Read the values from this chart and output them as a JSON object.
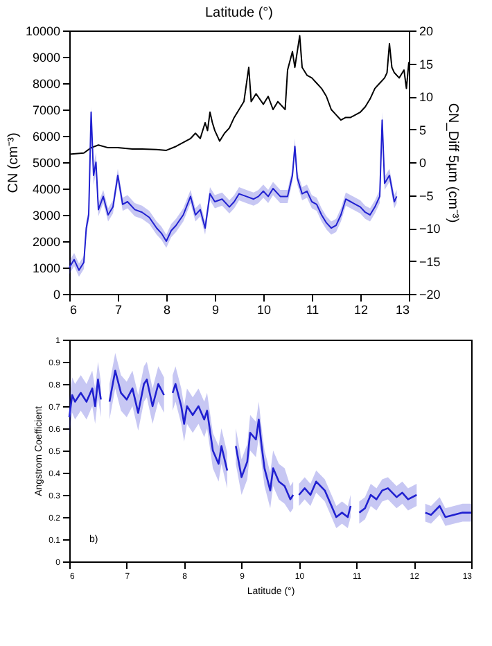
{
  "chart_data": [
    {
      "type": "line",
      "title": "Latitude (°)",
      "ylabel": "CN (cm⁻³)",
      "y2label": "CN_Diff 5µm (cm⁻³)",
      "xlim": [
        6,
        13
      ],
      "xticks": [
        6,
        7,
        8,
        9,
        10,
        11,
        12,
        13
      ],
      "ylim": [
        0,
        10000
      ],
      "yticks": [
        0,
        1000,
        2000,
        3000,
        4000,
        5000,
        6000,
        7000,
        8000,
        9000,
        10000
      ],
      "y2lim": [
        -20,
        20
      ],
      "y2ticks": [
        -20,
        -15,
        -10,
        -5,
        0,
        5,
        10,
        15,
        20
      ],
      "grid": false,
      "series": [
        {
          "color": "#000000",
          "x": [
            6.0,
            6.3,
            6.45,
            6.6,
            6.8,
            7.0,
            7.3,
            7.5,
            7.8,
            8.0,
            8.2,
            8.4,
            8.5,
            8.6,
            8.7,
            8.8,
            8.85,
            8.9,
            8.95,
            9.0,
            9.1,
            9.2,
            9.3,
            9.4,
            9.5,
            9.6,
            9.7,
            9.75,
            9.85,
            10.0,
            10.1,
            10.2,
            10.3,
            10.45,
            10.5,
            10.6,
            10.65,
            10.7,
            10.75,
            10.8,
            10.9,
            11.0,
            11.1,
            11.2,
            11.3,
            11.4,
            11.5,
            11.6,
            11.7,
            11.8,
            11.9,
            12.0,
            12.1,
            12.2,
            12.3,
            12.4,
            12.5,
            12.55,
            12.6,
            12.65,
            12.7,
            12.8,
            12.9,
            12.95,
            13.0
          ],
          "values": [
            5300,
            5350,
            5550,
            5650,
            5550,
            5550,
            5500,
            5500,
            5480,
            5450,
            5600,
            5800,
            5900,
            6100,
            5900,
            6500,
            6200,
            6900,
            6500,
            6200,
            5800,
            6100,
            6300,
            6700,
            7000,
            7300,
            8600,
            7300,
            7600,
            7200,
            7500,
            7000,
            7300,
            7000,
            8500,
            9200,
            8600,
            9200,
            9800,
            8600,
            8300,
            8200,
            8000,
            7800,
            7500,
            7000,
            6800,
            6600,
            6700,
            6700,
            6800,
            6900,
            7100,
            7400,
            7800,
            8000,
            8200,
            8400,
            9500,
            8600,
            8400,
            8200,
            8500,
            7800,
            8800
          ]
        },
        {
          "color": "#2020d0",
          "axis": "y2",
          "x": [
            6.0,
            6.1,
            6.2,
            6.3,
            6.35,
            6.4,
            6.45,
            6.5,
            6.55,
            6.6,
            6.7,
            6.8,
            6.9,
            7.0,
            7.1,
            7.2,
            7.35,
            7.5,
            7.65,
            7.8,
            7.9,
            8.0,
            8.1,
            8.2,
            8.35,
            8.5,
            8.6,
            8.7,
            8.8,
            8.9,
            9.0,
            9.15,
            9.3,
            9.4,
            9.5,
            9.65,
            9.8,
            9.9,
            10.0,
            10.1,
            10.2,
            10.35,
            10.5,
            10.6,
            10.65,
            10.7,
            10.8,
            10.9,
            11.0,
            11.1,
            11.2,
            11.3,
            11.4,
            11.5,
            11.6,
            11.7,
            11.8,
            11.9,
            12.0,
            12.1,
            12.2,
            12.3,
            12.4,
            12.45,
            12.5,
            12.6,
            12.7,
            12.75
          ],
          "values": [
            -16,
            -14.8,
            -16.4,
            -15.2,
            -10,
            -8,
            7.6,
            -2,
            0,
            -7.2,
            -5.2,
            -8,
            -6.8,
            -2,
            -6.4,
            -6,
            -7.2,
            -7.6,
            -8.4,
            -10,
            -10.8,
            -12,
            -10.4,
            -9.6,
            -8,
            -5.2,
            -8,
            -7.2,
            -10,
            -4.8,
            -6,
            -5.6,
            -6.8,
            -6,
            -4.8,
            -5.2,
            -5.6,
            -5.2,
            -4.4,
            -5.2,
            -4,
            -5.2,
            -5.2,
            -2,
            2.4,
            -2.4,
            -4.8,
            -4.4,
            -6,
            -6.4,
            -8,
            -9.2,
            -10,
            -9.6,
            -8,
            -5.6,
            -6,
            -6.4,
            -6.8,
            -7.6,
            -8,
            -6.8,
            -5.2,
            6.4,
            -3.2,
            -2,
            -6,
            -5.2
          ],
          "lower": [
            -17,
            -15.8,
            -17.4,
            -16.2,
            -11,
            -9,
            5.6,
            -3.5,
            -1.5,
            -8.2,
            -6.2,
            -9,
            -7.8,
            -3,
            -7.4,
            -7,
            -8.2,
            -8.6,
            -9.4,
            -11,
            -11.8,
            -13,
            -11.4,
            -10.6,
            -9,
            -6.2,
            -9,
            -8.2,
            -11,
            -5.8,
            -7,
            -6.6,
            -7.8,
            -7,
            -5.8,
            -6.2,
            -6.6,
            -6.2,
            -5.4,
            -6.2,
            -5,
            -6.2,
            -6.2,
            -3,
            1.2,
            -3.4,
            -5.8,
            -5.4,
            -7,
            -7.4,
            -9,
            -10.2,
            -11,
            -10.6,
            -9,
            -6.6,
            -7,
            -7.4,
            -7.8,
            -8.6,
            -9,
            -7.8,
            -6.2,
            5.2,
            -4.2,
            -3,
            -7,
            -6.2
          ],
          "upper": [
            -15,
            -13.8,
            -15.4,
            -14.2,
            -9,
            -7,
            8.4,
            -0.5,
            1.5,
            -6.2,
            -4.2,
            -7,
            -5.8,
            -1,
            -5.4,
            -5,
            -6.2,
            -6.6,
            -7.4,
            -9,
            -9.8,
            -11,
            -9.4,
            -8.6,
            -7,
            -4.2,
            -7,
            -6.2,
            -9,
            -3.8,
            -5,
            -4.6,
            -5.8,
            -5,
            -3.8,
            -4.2,
            -4.6,
            -4.2,
            -3.4,
            -4.2,
            -3,
            -4.2,
            -4.2,
            -1,
            3.6,
            -1.4,
            -3.8,
            -3.4,
            -5,
            -5.4,
            -7,
            -8.2,
            -9,
            -8.6,
            -7,
            -4.6,
            -5,
            -5.4,
            -5.8,
            -6.6,
            -7,
            -5.8,
            -4.2,
            7.6,
            -2.2,
            -1,
            -5,
            -4.2
          ]
        }
      ]
    },
    {
      "type": "line",
      "xlabel": "Latitude (°)",
      "ylabel": "Angstrom Coefficient",
      "xlim": [
        6,
        13
      ],
      "xticks": [
        6,
        7,
        8,
        9,
        10,
        11,
        12,
        13
      ],
      "ylim": [
        0,
        1
      ],
      "yticks": [
        0,
        0.1,
        0.2,
        0.3,
        0.4,
        0.5,
        0.6,
        0.7,
        0.8,
        0.9,
        1
      ],
      "grid": false,
      "annotations": [
        "b)"
      ],
      "series": [
        {
          "color": "#2020d0",
          "x": [
            6.0,
            6.05,
            6.1,
            6.2,
            6.3,
            6.4,
            6.45,
            6.5,
            6.55,
            6.6,
            6.7,
            6.8,
            6.9,
            7.0,
            7.1,
            7.2,
            7.3,
            7.35,
            7.45,
            7.55,
            7.65,
            7.7,
            7.8,
            7.85,
            7.95,
            8.0,
            8.05,
            8.15,
            8.25,
            8.35,
            8.4,
            8.5,
            8.6,
            8.65,
            8.75,
            8.8,
            8.9,
            9.0,
            9.1,
            9.15,
            9.25,
            9.3,
            9.35,
            9.4,
            9.5,
            9.55,
            9.65,
            9.75,
            9.85,
            9.9,
            9.95,
            10.0,
            10.1,
            10.2,
            10.3,
            10.45,
            10.55,
            10.65,
            10.75,
            10.85,
            10.9,
            10.97,
            11.05,
            11.15,
            11.25,
            11.35,
            11.45,
            11.55,
            11.7,
            11.8,
            11.9,
            12.05,
            12.12,
            12.2,
            12.3,
            12.45,
            12.55,
            12.7,
            12.85,
            13.0
          ],
          "values": [
            0.65,
            0.75,
            0.72,
            0.76,
            0.72,
            0.78,
            0.7,
            0.82,
            0.73,
            null,
            0.72,
            0.86,
            0.76,
            0.73,
            0.78,
            0.67,
            0.8,
            0.82,
            0.7,
            0.8,
            0.75,
            null,
            0.76,
            0.8,
            0.7,
            0.62,
            0.7,
            0.66,
            0.7,
            0.64,
            0.68,
            0.5,
            0.44,
            0.52,
            0.41,
            null,
            0.52,
            0.38,
            0.45,
            0.58,
            0.55,
            0.64,
            0.52,
            0.42,
            0.32,
            0.42,
            0.36,
            0.34,
            0.28,
            0.3,
            null,
            0.3,
            0.33,
            0.3,
            0.36,
            0.32,
            0.26,
            0.2,
            0.22,
            0.2,
            0.25,
            null,
            0.22,
            0.24,
            0.3,
            0.28,
            0.32,
            0.33,
            0.29,
            0.31,
            0.28,
            0.3,
            null,
            0.22,
            0.21,
            0.25,
            0.2,
            0.21,
            0.22,
            0.22
          ],
          "lower": [
            0.57,
            0.67,
            0.64,
            0.68,
            0.64,
            0.7,
            0.62,
            0.74,
            0.65,
            null,
            0.64,
            0.78,
            0.68,
            0.65,
            0.7,
            0.59,
            0.72,
            0.74,
            0.62,
            0.72,
            0.67,
            null,
            0.68,
            0.72,
            0.62,
            0.54,
            0.62,
            0.58,
            0.62,
            0.56,
            0.6,
            0.42,
            0.36,
            0.44,
            0.33,
            null,
            0.44,
            0.3,
            0.37,
            0.5,
            0.47,
            0.56,
            0.44,
            0.34,
            0.24,
            0.34,
            0.28,
            0.26,
            0.22,
            0.24,
            null,
            0.25,
            0.28,
            0.25,
            0.31,
            0.27,
            0.21,
            0.15,
            0.17,
            0.15,
            0.2,
            null,
            0.17,
            0.19,
            0.25,
            0.23,
            0.27,
            0.28,
            0.24,
            0.26,
            0.23,
            0.25,
            null,
            0.18,
            0.17,
            0.21,
            0.16,
            0.17,
            0.18,
            0.18
          ],
          "upper": [
            0.73,
            0.83,
            0.8,
            0.84,
            0.8,
            0.86,
            0.78,
            0.9,
            0.81,
            null,
            0.8,
            0.94,
            0.84,
            0.81,
            0.86,
            0.75,
            0.88,
            0.9,
            0.78,
            0.88,
            0.83,
            null,
            0.84,
            0.88,
            0.78,
            0.7,
            0.78,
            0.74,
            0.78,
            0.72,
            0.76,
            0.58,
            0.52,
            0.6,
            0.49,
            null,
            0.6,
            0.46,
            0.53,
            0.66,
            0.63,
            0.72,
            0.6,
            0.5,
            0.4,
            0.5,
            0.44,
            0.42,
            0.34,
            0.36,
            null,
            0.35,
            0.38,
            0.35,
            0.41,
            0.37,
            0.31,
            0.25,
            0.27,
            0.25,
            0.3,
            null,
            0.27,
            0.29,
            0.35,
            0.33,
            0.37,
            0.38,
            0.34,
            0.36,
            0.33,
            0.35,
            null,
            0.26,
            0.25,
            0.29,
            0.24,
            0.25,
            0.26,
            0.26
          ]
        }
      ]
    }
  ]
}
